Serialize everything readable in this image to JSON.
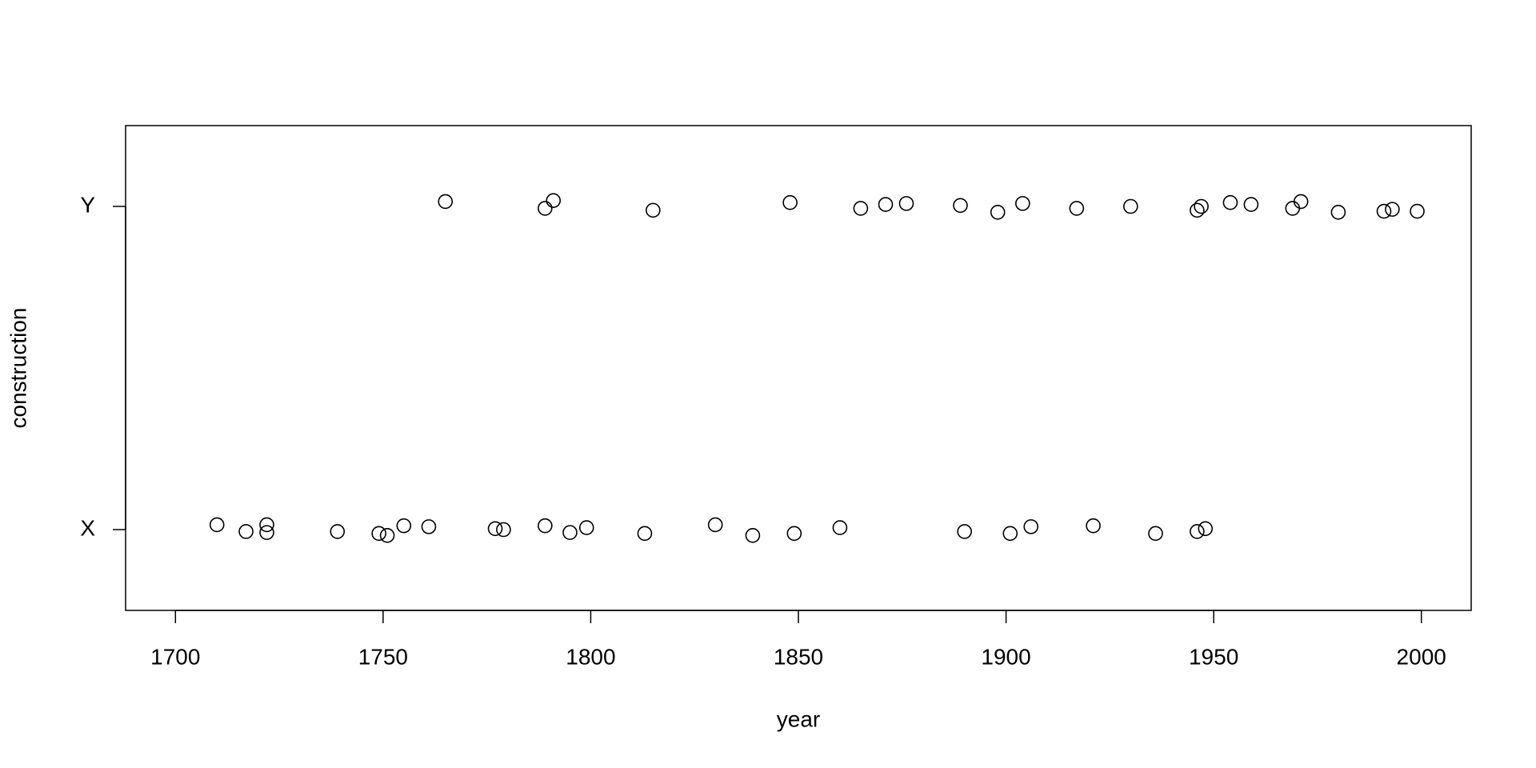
{
  "chart_data": {
    "type": "scatter",
    "xlabel": "year",
    "ylabel": "construction",
    "xlim": [
      1688,
      2012
    ],
    "ylim": [
      0.75,
      2.25
    ],
    "xticks": [
      1700,
      1750,
      1800,
      1850,
      1900,
      1950,
      2000
    ],
    "yticks": [
      {
        "value": 1,
        "label": "X"
      },
      {
        "value": 2,
        "label": "Y"
      }
    ],
    "color": "#000000",
    "series": [
      {
        "x": [
          1710,
          1717,
          1722,
          1722,
          1739,
          1749,
          1751,
          1755,
          1761,
          1777,
          1779,
          1789,
          1795,
          1799,
          1813,
          1830,
          1839,
          1849,
          1860,
          1890,
          1901,
          1906,
          1921,
          1936,
          1946,
          1948
        ],
        "y": [
          1.015,
          0.994,
          1.015,
          0.991,
          0.994,
          0.988,
          0.982,
          1.012,
          1.009,
          1.003,
          1.0,
          1.012,
          0.991,
          1.006,
          0.988,
          1.015,
          0.982,
          0.988,
          1.006,
          0.994,
          0.988,
          1.009,
          1.012,
          0.988,
          0.994,
          1.003
        ]
      },
      {
        "x": [
          1765,
          1789,
          1791,
          1815,
          1848,
          1865,
          1871,
          1876,
          1889,
          1898,
          1904,
          1917,
          1930,
          1946,
          1947,
          1954,
          1959,
          1969,
          1971,
          1980,
          1991,
          1993,
          1999
        ],
        "y": [
          2.015,
          1.994,
          2.018,
          1.988,
          2.012,
          1.994,
          2.006,
          2.009,
          2.003,
          1.982,
          2.009,
          1.994,
          2.0,
          1.988,
          2.0,
          2.012,
          2.006,
          1.994,
          2.015,
          1.982,
          1.985,
          1.991,
          1.985
        ]
      }
    ]
  }
}
